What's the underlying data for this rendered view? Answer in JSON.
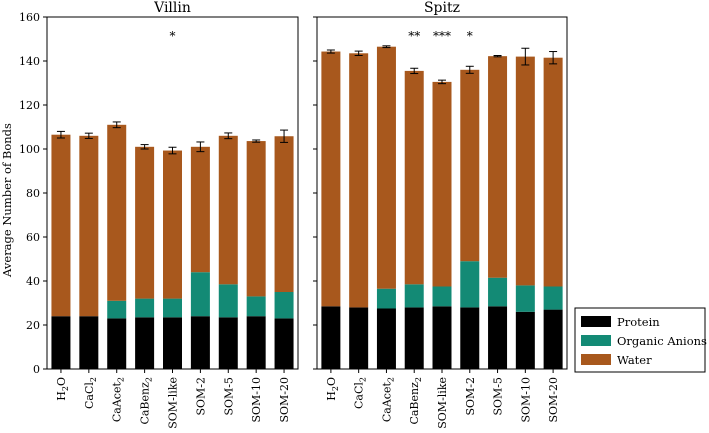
{
  "chart_data": {
    "type": "bar",
    "stacked": true,
    "ylabel": "Average Number of Bonds",
    "ylim": [
      0,
      160
    ],
    "yticks": [
      0,
      20,
      40,
      60,
      80,
      100,
      120,
      140,
      160
    ],
    "categories": [
      "H2O",
      "CaCl2",
      "CaAcet2",
      "CaBenz2",
      "SOM-like",
      "SOM-2",
      "SOM-5",
      "SOM-10",
      "SOM-20"
    ],
    "category_labels": [
      {
        "base": "H",
        "sub": "2",
        "tail": "O"
      },
      {
        "base": "CaCl",
        "sub": "2",
        "tail": ""
      },
      {
        "base": "CaAcet",
        "sub": "2",
        "tail": ""
      },
      {
        "base": "CaBenz",
        "sub": "2",
        "tail": ""
      },
      {
        "base": "SOM-like",
        "sub": "",
        "tail": ""
      },
      {
        "base": "SOM-2",
        "sub": "",
        "tail": ""
      },
      {
        "base": "SOM-5",
        "sub": "",
        "tail": ""
      },
      {
        "base": "SOM-10",
        "sub": "",
        "tail": ""
      },
      {
        "base": "SOM-20",
        "sub": "",
        "tail": ""
      }
    ],
    "legend": {
      "location": "lower-right",
      "entries": [
        {
          "name": "Protein",
          "color": "#000000"
        },
        {
          "name": "Organic Anions",
          "color": "#138a75"
        },
        {
          "name": "Water",
          "color": "#a8581d"
        }
      ]
    },
    "panels": [
      {
        "title": "Villin",
        "series": [
          {
            "name": "Protein",
            "values": [
              24,
              24,
              23,
              23.5,
              23.5,
              24,
              23.5,
              24,
              23
            ]
          },
          {
            "name": "Organic Anions",
            "values": [
              0,
              0,
              8,
              8.5,
              8.5,
              20,
              15,
              9,
              12
            ]
          },
          {
            "name": "Water",
            "values": [
              82.5,
              82,
              80,
              69,
              67.3,
              57,
              67.5,
              70.6,
              70.8
            ]
          }
        ],
        "totals": [
          106.5,
          106,
          111,
          101,
          99.3,
          101,
          106,
          103.6,
          105.8
        ],
        "errors": [
          1.5,
          1.2,
          1.3,
          1.0,
          1.5,
          2.2,
          1.3,
          0.5,
          2.8
        ],
        "significance": [
          "",
          "",
          "",
          "",
          "*",
          "",
          "",
          "",
          ""
        ]
      },
      {
        "title": "Spitz",
        "series": [
          {
            "name": "Protein",
            "values": [
              28.5,
              28,
              27.5,
              28,
              28.5,
              28,
              28.5,
              26,
              27
            ]
          },
          {
            "name": "Organic Anions",
            "values": [
              0,
              0,
              9,
              10.5,
              9,
              21,
              13,
              12,
              10.5
            ]
          },
          {
            "name": "Water",
            "values": [
              115.8,
              115.5,
              110,
              97,
              93,
              87,
              100.7,
              104,
              104
            ]
          }
        ],
        "totals": [
          144.3,
          143.5,
          146.5,
          135.5,
          130.5,
          136,
          142.2,
          142,
          141.5
        ],
        "errors": [
          0.7,
          1.0,
          0.4,
          1.2,
          0.8,
          1.6,
          0.3,
          3.8,
          2.8
        ],
        "significance": [
          "",
          "",
          "",
          "**",
          "***",
          "*",
          "",
          "",
          ""
        ]
      }
    ]
  }
}
